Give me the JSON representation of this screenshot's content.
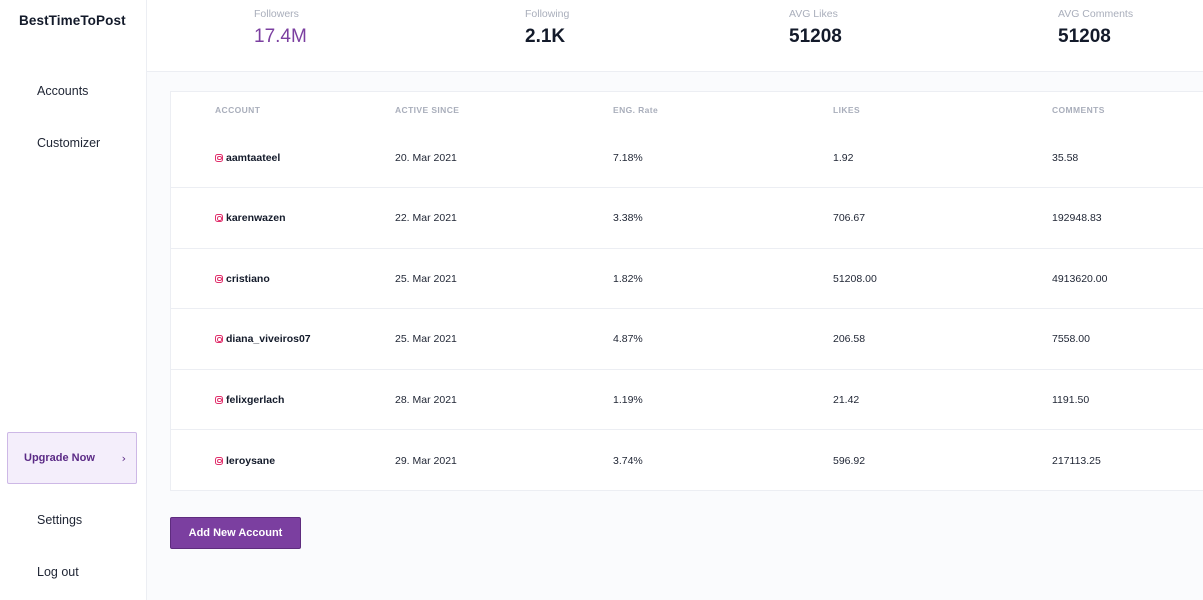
{
  "sidebar": {
    "brand": "BestTimeToPost",
    "nav": [
      {
        "label": "Accounts"
      },
      {
        "label": "Customizer"
      }
    ],
    "upgrade_label": "Upgrade Now",
    "bottom": [
      {
        "label": "Settings"
      },
      {
        "label": "Log out"
      }
    ]
  },
  "stats": [
    {
      "label": "Followers",
      "value": "17.4M"
    },
    {
      "label": "Following",
      "value": "2.1K"
    },
    {
      "label": "AVG Likes",
      "value": "51208"
    },
    {
      "label": "AVG Comments",
      "value": "51208"
    }
  ],
  "table": {
    "headers": [
      "ACCOUNT",
      "ACTIVE SINCE",
      "ENG. Rate",
      "LIKES",
      "COMMENTS"
    ],
    "rows": [
      {
        "account": "aamtaateel",
        "active_since": "20. Mar 2021",
        "eng_rate": "7.18%",
        "likes": "1.92",
        "comments": "35.58"
      },
      {
        "account": "karenwazen",
        "active_since": "22. Mar 2021",
        "eng_rate": "3.38%",
        "likes": "706.67",
        "comments": "192948.83"
      },
      {
        "account": "cristiano",
        "active_since": "25. Mar 2021",
        "eng_rate": "1.82%",
        "likes": "51208.00",
        "comments": "4913620.00"
      },
      {
        "account": "diana_viveiros07",
        "active_since": "25. Mar 2021",
        "eng_rate": "4.87%",
        "likes": "206.58",
        "comments": "7558.00"
      },
      {
        "account": "felixgerlach",
        "active_since": "28. Mar 2021",
        "eng_rate": "1.19%",
        "likes": "21.42",
        "comments": "1191.50"
      },
      {
        "account": "leroysane",
        "active_since": "29. Mar 2021",
        "eng_rate": "3.74%",
        "likes": "596.92",
        "comments": "217113.25"
      }
    ]
  },
  "add_button_label": "Add New Account",
  "icons": {
    "account_icon": "instagram-icon",
    "upgrade_icon": "chevron-right-icon"
  },
  "colors": {
    "accent": "#7b3fa0",
    "instagram": "#e1306c"
  }
}
